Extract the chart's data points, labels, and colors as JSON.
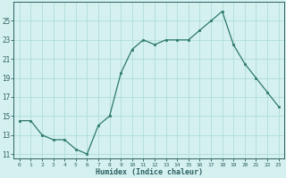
{
  "x": [
    0,
    1,
    2,
    3,
    4,
    5,
    6,
    7,
    8,
    9,
    10,
    11,
    12,
    13,
    14,
    15,
    16,
    17,
    18,
    19,
    20,
    21,
    22,
    23
  ],
  "y": [
    14.5,
    14.5,
    13.0,
    12.5,
    12.5,
    11.5,
    11.0,
    14.0,
    15.0,
    19.5,
    22.0,
    23.0,
    22.5,
    23.0,
    23.0,
    23.0,
    24.0,
    25.0,
    26.0,
    22.5,
    20.5,
    19.0,
    17.5,
    16.0
  ],
  "xlabel": "Humidex (Indice chaleur)",
  "ylim": [
    10.5,
    27
  ],
  "xlim": [
    -0.5,
    23.5
  ],
  "yticks": [
    11,
    13,
    15,
    17,
    19,
    21,
    23,
    25
  ],
  "xticks": [
    0,
    1,
    2,
    3,
    4,
    5,
    6,
    7,
    8,
    9,
    10,
    11,
    12,
    13,
    14,
    15,
    16,
    17,
    18,
    19,
    20,
    21,
    22,
    23
  ],
  "line_color": "#2d7a6a",
  "marker_color": "#2d7a6a",
  "bg_color": "#d4f0ef",
  "grid_color": "#b0ddd8",
  "xlabel_color": "#2d6060",
  "tick_color": "#2d6060",
  "spine_color": "#2d6060"
}
